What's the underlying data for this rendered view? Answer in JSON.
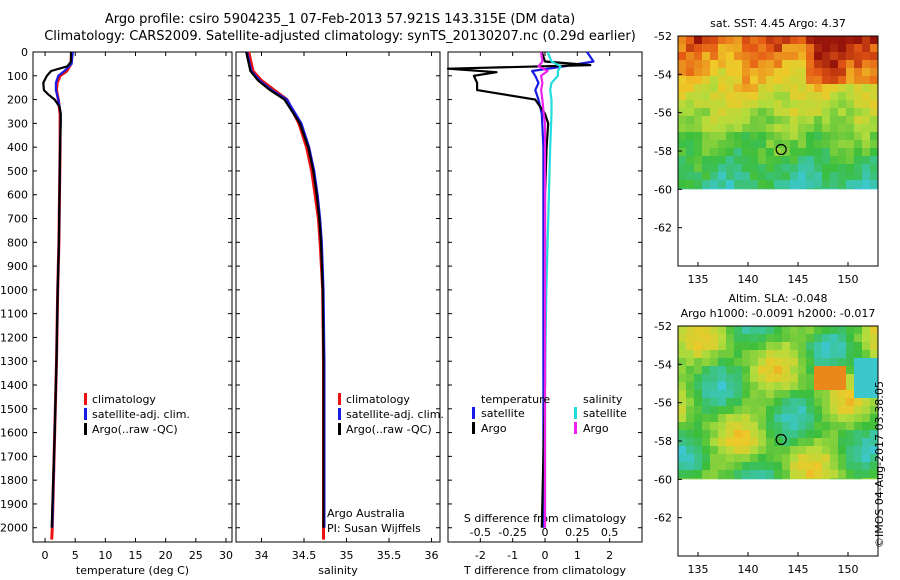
{
  "header": {
    "line1": "Argo profile: csiro 5904235_1 07-Feb-2013 57.921S 143.315E (DM data)",
    "line2": "Climatology: CARS2009. Satellite-adjusted climatology: synTS_20130207.nc (0.29d earlier)"
  },
  "credit": "©IMOS 04-Aug-2017 03:38:05",
  "colors": {
    "climatology": "#ee1111",
    "satellite": "#1a1ae6",
    "argo": "#000000",
    "sal_satellite": "#22dddd",
    "sal_argo": "#ee22ee"
  },
  "chart_data": [
    {
      "type": "line",
      "name": "temperature-profile",
      "xlabel": "temperature (deg C)",
      "xlim": [
        -2,
        31
      ],
      "xticks": [
        0,
        5,
        10,
        15,
        20,
        25,
        30
      ],
      "ylim": [
        0,
        2060
      ],
      "yticks": [
        0,
        100,
        200,
        300,
        400,
        500,
        600,
        700,
        800,
        900,
        1000,
        1100,
        1200,
        1300,
        1400,
        1500,
        1600,
        1700,
        1800,
        1900,
        2000
      ],
      "legend": [
        "climatology",
        "satellite-adj. clim.",
        "Argo(..raw -QC)"
      ],
      "series": [
        {
          "name": "climatology",
          "depth": [
            0,
            50,
            80,
            100,
            130,
            160,
            200,
            260,
            400,
            600,
            800,
            1000,
            1300,
            1600,
            2000,
            2050
          ],
          "values": [
            4.4,
            4.3,
            3.6,
            2.5,
            2.0,
            1.9,
            2.2,
            2.5,
            2.5,
            2.4,
            2.3,
            2.1,
            1.9,
            1.6,
            1.2,
            1.1
          ]
        },
        {
          "name": "satellite-adj. clim.",
          "depth": [
            0,
            50,
            80,
            100,
            130,
            160,
            200,
            260,
            400,
            600,
            800,
            1000,
            1300,
            1600,
            2000
          ],
          "values": [
            4.6,
            4.4,
            3.2,
            2.2,
            1.8,
            1.8,
            2.2,
            2.6,
            2.5,
            2.4,
            2.3,
            2.1,
            1.9,
            1.6,
            1.2
          ]
        },
        {
          "name": "Argo(..raw -QC)",
          "depth": [
            0,
            40,
            60,
            80,
            100,
            130,
            160,
            180,
            200,
            230,
            260,
            300,
            400,
            600,
            800,
            1000,
            1300,
            1600,
            2000
          ],
          "values": [
            4.3,
            4.3,
            3.7,
            1.0,
            0.3,
            -0.3,
            -0.2,
            0.6,
            1.6,
            2.4,
            2.6,
            2.6,
            2.5,
            2.4,
            2.3,
            2.1,
            1.9,
            1.6,
            1.1
          ]
        }
      ]
    },
    {
      "type": "line",
      "name": "salinity-profile",
      "xlabel": "salinity",
      "xlim": [
        33.7,
        36.1
      ],
      "xticks": [
        34,
        34.5,
        35,
        35.5,
        36
      ],
      "ylim": [
        0,
        2060
      ],
      "legend": [
        "climatology",
        "satellite-adj. clim.",
        "Argo(..raw -QC)"
      ],
      "annotation": [
        "Argo Australia",
        "PI: Susan Wijffels"
      ],
      "series": [
        {
          "name": "climatology",
          "depth": [
            0,
            80,
            120,
            160,
            200,
            300,
            400,
            500,
            600,
            700,
            800,
            1000,
            1300,
            2000,
            2050
          ],
          "values": [
            33.85,
            33.9,
            34.0,
            34.15,
            34.3,
            34.44,
            34.53,
            34.59,
            34.63,
            34.67,
            34.69,
            34.72,
            34.73,
            34.73,
            34.73
          ]
        },
        {
          "name": "satellite-adj. clim.",
          "depth": [
            0,
            80,
            120,
            160,
            200,
            300,
            400,
            500,
            600,
            700,
            800,
            1000,
            1300,
            2000
          ],
          "values": [
            33.83,
            33.88,
            33.98,
            34.12,
            34.3,
            34.47,
            34.56,
            34.62,
            34.66,
            34.69,
            34.71,
            34.73,
            34.74,
            34.74
          ]
        },
        {
          "name": "Argo(..raw -QC)",
          "depth": [
            0,
            80,
            120,
            160,
            200,
            300,
            400,
            500,
            600,
            700,
            800,
            1000,
            1300,
            2000
          ],
          "values": [
            33.82,
            33.87,
            33.96,
            34.1,
            34.27,
            34.45,
            34.55,
            34.61,
            34.65,
            34.68,
            34.7,
            34.72,
            34.73,
            34.73
          ]
        }
      ]
    },
    {
      "type": "line",
      "name": "difference-profile",
      "xlabel": "T difference from climatology",
      "xlabel_top": "S difference from climatology",
      "xlim": [
        -3,
        3
      ],
      "xticks": [
        -2,
        -1,
        0,
        1,
        2
      ],
      "xticks_top": [
        "-0.5",
        "-0.25",
        "0",
        "0.25",
        "0.5"
      ],
      "ylim": [
        0,
        2060
      ],
      "legend_titles": [
        "temperature",
        "salinity"
      ],
      "legend": [
        "satellite",
        "Argo",
        "satellite",
        "Argo"
      ],
      "series": [
        {
          "name": "temperature satellite",
          "depth": [
            0,
            40,
            60,
            80,
            100,
            130,
            160,
            200,
            260,
            400,
            600,
            800,
            1000,
            1400,
            2000
          ],
          "values": [
            1.3,
            1.5,
            0.6,
            -0.4,
            -0.3,
            -0.2,
            -0.3,
            -0.2,
            -0.1,
            -0.05,
            -0.05,
            -0.05,
            -0.05,
            -0.05,
            -0.05
          ]
        },
        {
          "name": "temperature Argo",
          "depth": [
            0,
            40,
            55,
            70,
            85,
            100,
            130,
            160,
            180,
            200,
            260,
            300,
            400,
            600,
            800,
            1000,
            1400,
            2000
          ],
          "values": [
            -0.1,
            0.0,
            1.4,
            -3.0,
            -1.5,
            -2.2,
            -2.1,
            -2.1,
            -1.2,
            -0.3,
            0.0,
            0.1,
            0.05,
            0.0,
            0.0,
            0.0,
            0.0,
            -0.1
          ]
        },
        {
          "name": "salinity satellite",
          "depth": [
            0,
            40,
            60,
            80,
            100,
            130,
            160,
            200,
            260,
            400,
            600,
            800,
            1000,
            1400,
            2000
          ],
          "values": [
            0.02,
            0.05,
            0.12,
            0.1,
            0.1,
            0.05,
            0.04,
            0.05,
            0.05,
            0.04,
            0.03,
            0.02,
            0.01,
            0.0,
            0.0
          ]
        },
        {
          "name": "salinity Argo",
          "depth": [
            0,
            40,
            60,
            80,
            100,
            130,
            160,
            200,
            260,
            300,
            400,
            600,
            800,
            1000,
            1400,
            2000
          ],
          "values": [
            -0.03,
            -0.02,
            -0.05,
            0.02,
            -0.03,
            -0.02,
            -0.03,
            -0.02,
            -0.01,
            0.0,
            0.0,
            0.0,
            0.0,
            0.0,
            0.0,
            0.0
          ]
        }
      ]
    },
    {
      "type": "heatmap",
      "name": "sst-map",
      "title": "sat. SST: 4.45  Argo: 4.37",
      "xlim": [
        133,
        153
      ],
      "ylim": [
        -64,
        -52
      ],
      "xticks": [
        135,
        140,
        145,
        150
      ],
      "yticks": [
        -52,
        -54,
        -56,
        -58,
        -60,
        -62
      ],
      "data_lat_range": [
        -60,
        -52
      ],
      "marker": {
        "lon": 143.315,
        "lat": -57.921
      }
    },
    {
      "type": "heatmap",
      "name": "sla-map",
      "title": "Altim. SLA: -0.048",
      "subtitle": "Argo h1000: -0.0091  h2000: -0.017",
      "xlim": [
        133,
        153
      ],
      "ylim": [
        -64,
        -52
      ],
      "xticks": [
        135,
        140,
        145,
        150
      ],
      "yticks": [
        -52,
        -54,
        -56,
        -58,
        -60,
        -62
      ],
      "data_lat_range": [
        -60,
        -52
      ],
      "marker": {
        "lon": 143.315,
        "lat": -57.921
      }
    }
  ]
}
